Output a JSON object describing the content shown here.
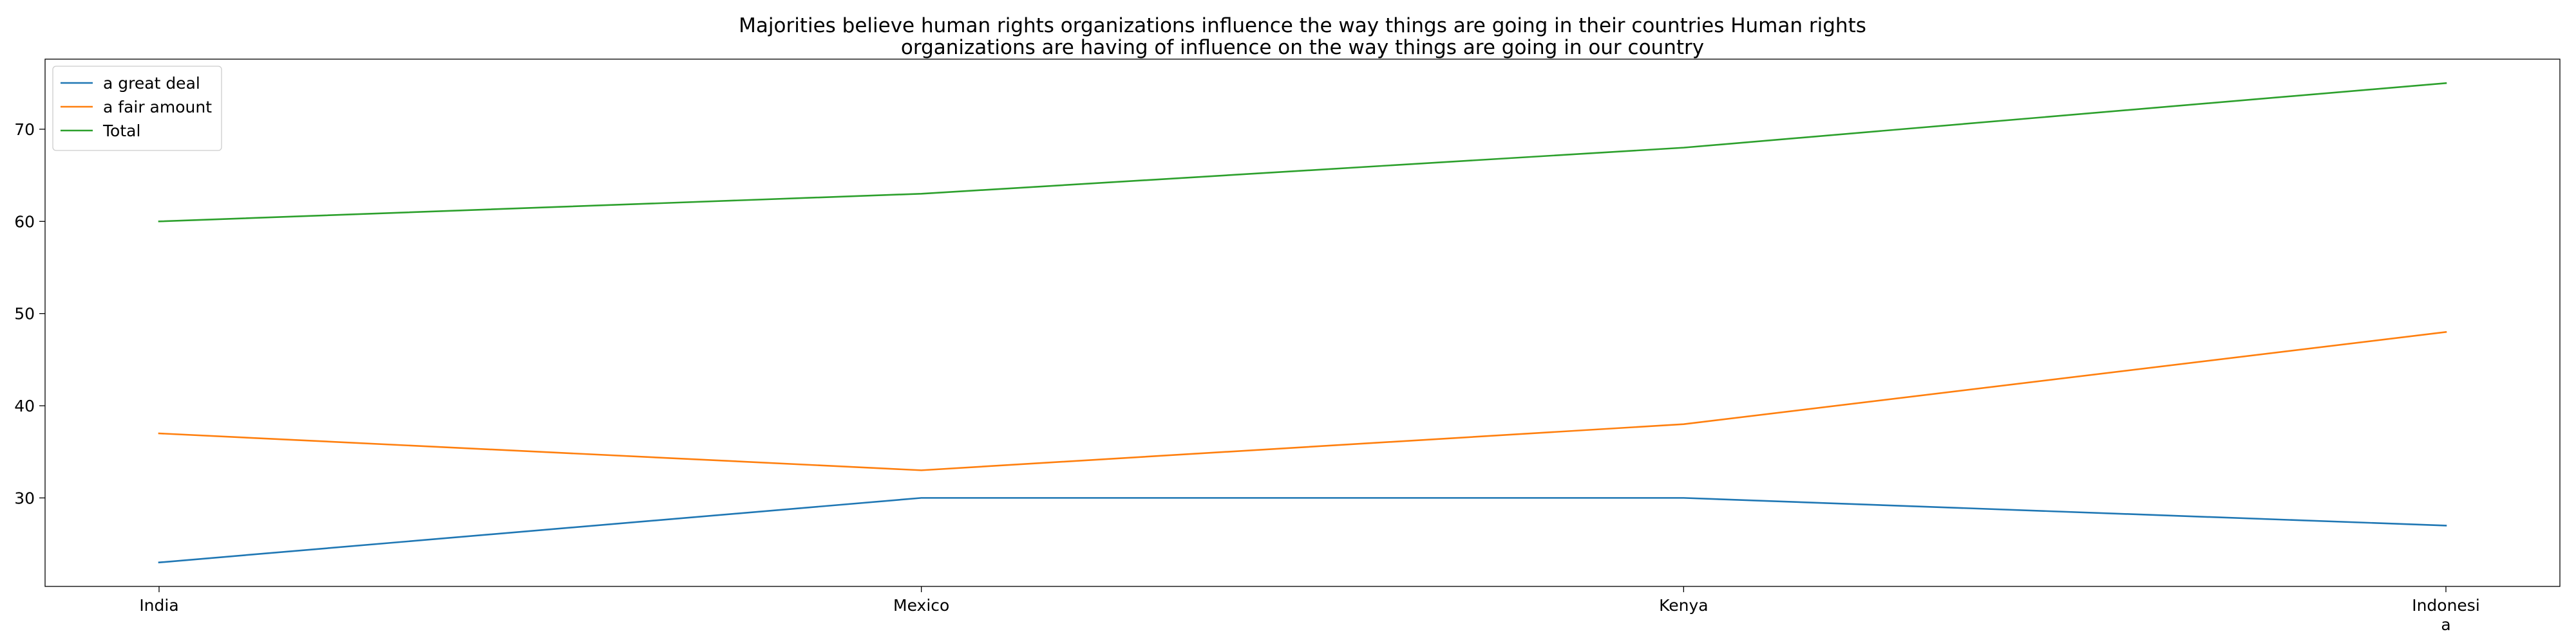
{
  "chart_data": {
    "type": "line",
    "title": "Majorities believe human rights organizations influence the way things are going in their countries Human rights organizations are having of influence on the way things are going in our country",
    "title_lines": [
      "Majorities believe human rights organizations influence the way things are going in their countries Human rights",
      "organizations are having of influence on the way things are going in our country"
    ],
    "xlabel": "",
    "ylabel": "",
    "categories": [
      "India",
      "Mexico",
      "Kenya",
      "Indonesia"
    ],
    "category_labels": [
      [
        "India"
      ],
      [
        "Mexico"
      ],
      [
        "Kenya"
      ],
      [
        "Indonesi",
        "a"
      ]
    ],
    "series": [
      {
        "name": "a great deal",
        "values": [
          23,
          30,
          30,
          27
        ],
        "color": "#1f77b4"
      },
      {
        "name": "a fair amount",
        "values": [
          37,
          33,
          38,
          48
        ],
        "color": "#ff7f0e"
      },
      {
        "name": "Total",
        "values": [
          60,
          63,
          68,
          75
        ],
        "color": "#2ca02c"
      }
    ],
    "ylim": [
      20.4,
      77.6
    ],
    "yticks": [
      30,
      40,
      50,
      60,
      70
    ],
    "grid": false,
    "legend_position": "top-left"
  }
}
